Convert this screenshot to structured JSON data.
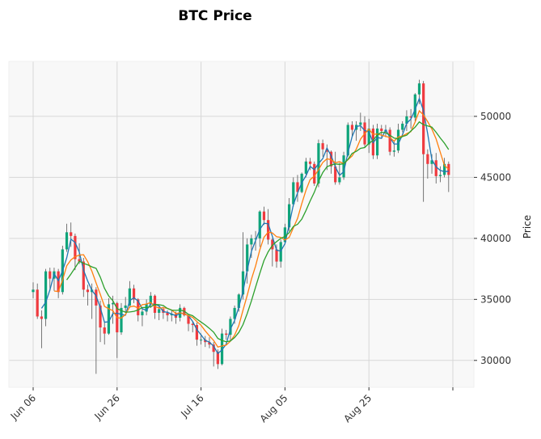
{
  "chart_data": {
    "type": "candlestick",
    "title": "BTC Price",
    "xlabel": "",
    "ylabel": "Price",
    "ylim": [
      27800,
      54500
    ],
    "y_ticks": [
      30000,
      35000,
      40000,
      45000,
      50000
    ],
    "x_ticks": [
      {
        "label": "Jun 06",
        "date": "2021-06-06"
      },
      {
        "label": "Jun 26",
        "date": "2021-06-26"
      },
      {
        "label": "Jul 16",
        "date": "2021-07-16"
      },
      {
        "label": "Aug 05",
        "date": "2021-08-05"
      },
      {
        "label": "Aug 25",
        "date": "2021-08-25"
      },
      {
        "label": "",
        "date": "2021-09-14"
      }
    ],
    "grid": true,
    "colors": {
      "up": "#0fa47a",
      "down": "#ef3a3f",
      "wick": "#555555",
      "ma_short": "#1f77b4",
      "ma_mid": "#ff7f0e",
      "ma_long": "#2ca02c",
      "plot_bg": "#f8f8f8",
      "grid": "#d7d7d7"
    },
    "moving_averages": [
      3,
      6,
      9
    ],
    "dates": [
      "2021-06-06",
      "2021-06-07",
      "2021-06-08",
      "2021-06-09",
      "2021-06-10",
      "2021-06-11",
      "2021-06-12",
      "2021-06-13",
      "2021-06-14",
      "2021-06-15",
      "2021-06-16",
      "2021-06-17",
      "2021-06-18",
      "2021-06-19",
      "2021-06-20",
      "2021-06-21",
      "2021-06-22",
      "2021-06-23",
      "2021-06-24",
      "2021-06-25",
      "2021-06-26",
      "2021-06-27",
      "2021-06-28",
      "2021-06-29",
      "2021-06-30",
      "2021-07-01",
      "2021-07-02",
      "2021-07-03",
      "2021-07-04",
      "2021-07-05",
      "2021-07-06",
      "2021-07-07",
      "2021-07-08",
      "2021-07-09",
      "2021-07-10",
      "2021-07-11",
      "2021-07-12",
      "2021-07-13",
      "2021-07-14",
      "2021-07-15",
      "2021-07-16",
      "2021-07-17",
      "2021-07-18",
      "2021-07-19",
      "2021-07-20",
      "2021-07-21",
      "2021-07-22",
      "2021-07-23",
      "2021-07-24",
      "2021-07-25",
      "2021-07-26",
      "2021-07-27",
      "2021-07-28",
      "2021-07-29",
      "2021-07-30",
      "2021-07-31",
      "2021-08-01",
      "2021-08-02",
      "2021-08-03",
      "2021-08-04",
      "2021-08-05",
      "2021-08-06",
      "2021-08-07",
      "2021-08-08",
      "2021-08-09",
      "2021-08-10",
      "2021-08-11",
      "2021-08-12",
      "2021-08-13",
      "2021-08-14",
      "2021-08-15",
      "2021-08-16",
      "2021-08-17",
      "2021-08-18",
      "2021-08-19",
      "2021-08-20",
      "2021-08-21",
      "2021-08-22",
      "2021-08-23",
      "2021-08-24",
      "2021-08-25",
      "2021-08-26",
      "2021-08-27",
      "2021-08-28",
      "2021-08-29",
      "2021-08-30",
      "2021-08-31",
      "2021-09-01",
      "2021-09-02",
      "2021-09-03",
      "2021-09-04",
      "2021-09-05",
      "2021-09-06",
      "2021-09-07",
      "2021-09-08",
      "2021-09-09",
      "2021-09-10",
      "2021-09-11",
      "2021-09-12",
      "2021-09-13"
    ],
    "open": [
      35600,
      35800,
      33600,
      33400,
      37300,
      36700,
      37300,
      35600,
      39100,
      40500,
      40200,
      38300,
      38100,
      35800,
      35600,
      35800,
      34500,
      32700,
      32200,
      34600,
      34700,
      32300,
      34300,
      34500,
      35900,
      35000,
      33700,
      34000,
      34600,
      35300,
      33900,
      34200,
      33900,
      33700,
      33800,
      33500,
      34300,
      33700,
      33000,
      32900,
      31700,
      31700,
      31500,
      31300,
      30700,
      29700,
      32200,
      32100,
      33400,
      34300,
      35400,
      37300,
      39500,
      40000,
      40000,
      42200,
      41500,
      39900,
      39100,
      38100,
      39700,
      40900,
      42800,
      44600,
      43800,
      45300,
      46300,
      46100,
      44500,
      47800,
      47300,
      47100,
      45900,
      44600,
      45000,
      46800,
      49300,
      48900,
      49300,
      49500,
      47700,
      49000,
      46800,
      49000,
      48800,
      48900,
      47100,
      47200,
      48900,
      49400,
      50000,
      49900,
      51800,
      52700,
      46900,
      46100,
      46400,
      45100,
      45200,
      46100
    ],
    "close": [
      35800,
      33600,
      33400,
      37300,
      36700,
      37300,
      35600,
      39100,
      40500,
      40200,
      38300,
      38100,
      35800,
      35600,
      35800,
      34500,
      32700,
      32200,
      34600,
      34700,
      32300,
      34300,
      34500,
      35900,
      35000,
      33700,
      34000,
      34600,
      35300,
      33900,
      34200,
      33900,
      33700,
      33800,
      33500,
      34300,
      33700,
      33000,
      32900,
      31700,
      31700,
      31500,
      31300,
      30700,
      29700,
      32200,
      32100,
      33400,
      34300,
      35400,
      37300,
      39500,
      40000,
      40000,
      42200,
      41500,
      39900,
      39100,
      38100,
      39700,
      40900,
      42800,
      44600,
      43800,
      45300,
      46300,
      46100,
      44500,
      47800,
      47300,
      47100,
      45900,
      44600,
      45000,
      46800,
      49300,
      48900,
      49300,
      49500,
      47700,
      49000,
      46800,
      49000,
      48800,
      48900,
      47100,
      47200,
      48900,
      49400,
      50000,
      49900,
      51800,
      52700,
      46900,
      46100,
      46400,
      45100,
      45200,
      46100,
      45200
    ],
    "high": [
      36400,
      36300,
      34100,
      37500,
      37600,
      37600,
      37500,
      39400,
      41200,
      41300,
      40400,
      39600,
      38400,
      36200,
      36300,
      36000,
      34900,
      33100,
      35100,
      35300,
      34800,
      34700,
      35200,
      36500,
      36200,
      35100,
      34300,
      35000,
      35600,
      35400,
      34500,
      34400,
      34100,
      34100,
      34000,
      34600,
      34400,
      33800,
      33200,
      33100,
      32200,
      32000,
      31900,
      31500,
      30900,
      32600,
      32500,
      33600,
      34500,
      35500,
      40500,
      40000,
      40300,
      40600,
      42300,
      42600,
      42400,
      40000,
      39500,
      39900,
      41200,
      43300,
      45000,
      45200,
      45400,
      46600,
      46600,
      46300,
      48100,
      48100,
      47700,
      47200,
      47100,
      46200,
      47100,
      49500,
      49600,
      49600,
      50300,
      50000,
      49800,
      49300,
      49400,
      49300,
      49300,
      49100,
      48000,
      49400,
      49600,
      50500,
      50600,
      51900,
      53000,
      52900,
      47300,
      46900,
      47000,
      45900,
      46600,
      46300
    ],
    "low": [
      35100,
      33400,
      31000,
      32800,
      35700,
      35700,
      35100,
      35400,
      38900,
      39300,
      37400,
      37900,
      35200,
      34500,
      33400,
      28900,
      31500,
      31300,
      32100,
      33000,
      30200,
      32100,
      33900,
      34300,
      34700,
      33200,
      32800,
      33700,
      34300,
      33400,
      33300,
      33400,
      33200,
      33200,
      33000,
      33200,
      33600,
      32400,
      32300,
      31200,
      31300,
      31100,
      31000,
      29500,
      29300,
      29600,
      31700,
      31600,
      33000,
      34000,
      35000,
      36300,
      38400,
      39000,
      39300,
      41100,
      39500,
      37700,
      37600,
      37600,
      39500,
      40600,
      42600,
      43000,
      43700,
      45000,
      45600,
      44300,
      44200,
      46700,
      45600,
      45300,
      44400,
      44400,
      44800,
      46700,
      48300,
      48000,
      48800,
      47500,
      47000,
      46500,
      46500,
      48300,
      48300,
      46800,
      46700,
      47000,
      48700,
      48800,
      49000,
      49600,
      51000,
      43000,
      44900,
      45300,
      44500,
      44600,
      45000,
      43800
    ]
  }
}
